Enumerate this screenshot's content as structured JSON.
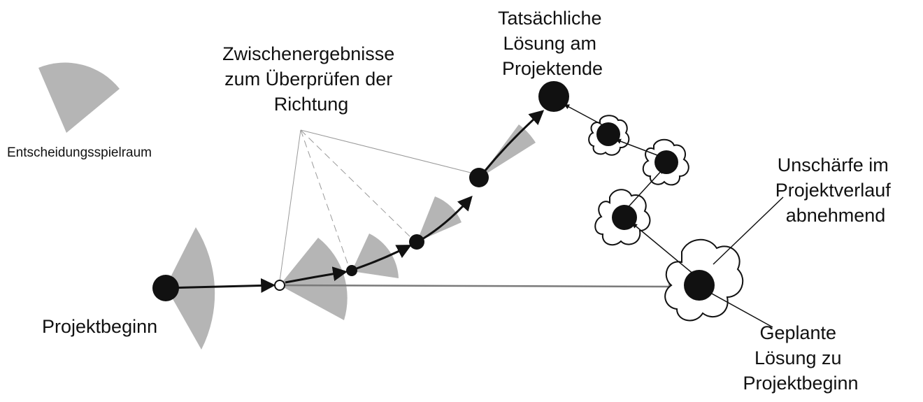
{
  "labels": {
    "legend": "Entscheidungsspielraum",
    "intermediate": [
      "Zwischenergebnisse",
      "zum Überprüfen der",
      "Richtung"
    ],
    "actual": [
      "Tatsächliche",
      "Lösung am",
      "Projektende"
    ],
    "uncertainty": [
      "Unschärfe im",
      "Projektverlauf",
      "abnehmend"
    ],
    "start": "Projektbeginn",
    "planned": [
      "Geplante",
      "Lösung zu",
      "Projektbeginn"
    ]
  },
  "colors": {
    "ink": "#111111",
    "sector": "#b5b5b5",
    "planned_line": "#7a7a7a",
    "dashed": "#9a9a9a"
  }
}
